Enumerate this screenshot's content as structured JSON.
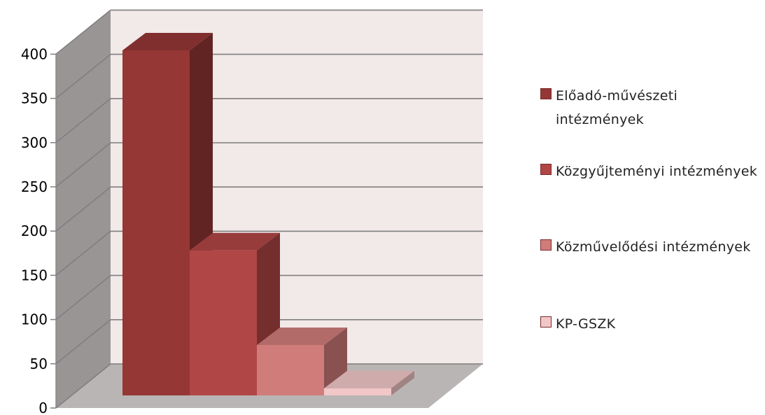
{
  "chart_data": {
    "type": "bar",
    "variant": "3d-clustered-column",
    "title": "",
    "xlabel": "",
    "ylabel": "",
    "ylim": [
      0,
      400
    ],
    "yticks": [
      "0",
      "50",
      "100",
      "150",
      "200",
      "250",
      "300",
      "350",
      "400"
    ],
    "grid": true,
    "legend_position": "right",
    "series": [
      {
        "name": "Előadó-művészeti intézmények",
        "values": [
          390
        ],
        "color": "#953735"
      },
      {
        "name": "Közgyűjteményi intézmények",
        "values": [
          164
        ],
        "color": "#b04645"
      },
      {
        "name": "Közművelődési intézmények",
        "values": [
          57
        ],
        "color": "#d07c7b"
      },
      {
        "name": "KP-GSZK",
        "values": [
          8
        ],
        "color": "#f2c7c7"
      }
    ],
    "colors": {
      "back_wall": "#f2e9e9",
      "side_wall": "#9a9595",
      "floor": "#bab5b5",
      "gridline": "#7f7f7f"
    }
  }
}
